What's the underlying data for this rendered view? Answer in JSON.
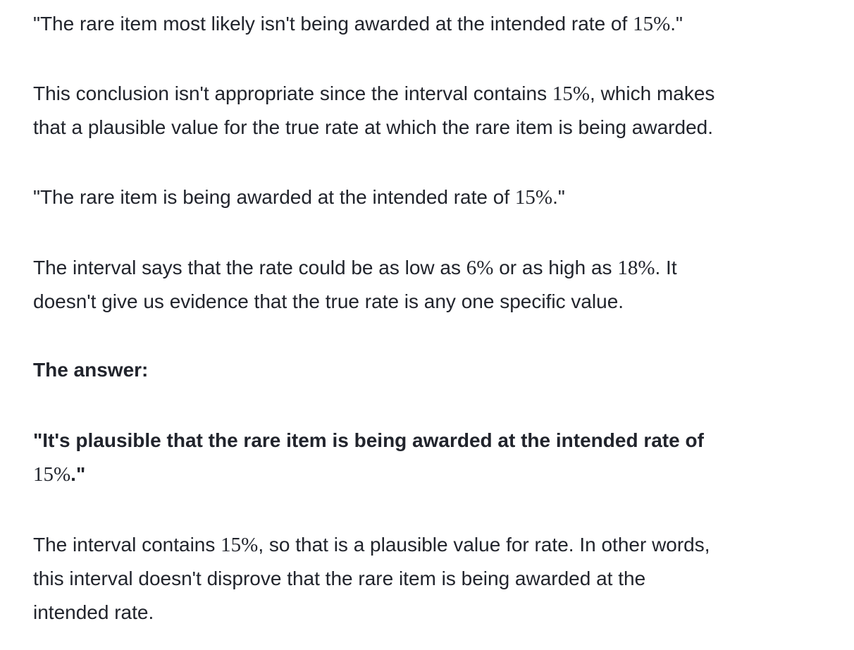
{
  "blocks": [
    {
      "id": "quote-1",
      "bold": false,
      "lines": [
        [
          {
            "t": "\"The rare item most likely isn't being awarded at the intended rate of "
          },
          {
            "t": "15%",
            "m": true
          },
          {
            "t": ".\""
          }
        ]
      ]
    },
    {
      "id": "explanation-1",
      "bold": false,
      "lines": [
        [
          {
            "t": "This conclusion isn't appropriate since the interval contains "
          },
          {
            "t": "15%",
            "m": true
          },
          {
            "t": ", which makes"
          }
        ],
        [
          {
            "t": "that a plausible value for the true rate at which the rare item is being awarded."
          }
        ]
      ]
    },
    {
      "id": "quote-2",
      "bold": false,
      "lines": [
        [
          {
            "t": "\"The rare item is being awarded at the intended rate of "
          },
          {
            "t": "15%",
            "m": true
          },
          {
            "t": ".\""
          }
        ]
      ]
    },
    {
      "id": "explanation-2",
      "bold": false,
      "lines": [
        [
          {
            "t": "The interval says that the rate could be as low as "
          },
          {
            "t": "6%",
            "m": true
          },
          {
            "t": " or as high as "
          },
          {
            "t": "18%",
            "m": true
          },
          {
            "t": ". It"
          }
        ],
        [
          {
            "t": "doesn't give us evidence that the true rate is any one specific value."
          }
        ]
      ]
    },
    {
      "id": "answer-heading",
      "bold": true,
      "lines": [
        [
          {
            "t": "The answer:"
          }
        ]
      ]
    },
    {
      "id": "answer-quote",
      "bold": true,
      "lines": [
        [
          {
            "t": "\"It's plausible that the rare item is being awarded at the intended rate of"
          }
        ],
        [
          {
            "t": "15%",
            "m": true
          },
          {
            "t": ".\""
          }
        ]
      ]
    },
    {
      "id": "answer-explanation",
      "bold": false,
      "lines": [
        [
          {
            "t": "The interval contains "
          },
          {
            "t": "15%",
            "m": true
          },
          {
            "t": ", so that is a plausible value for rate. In other words,"
          }
        ],
        [
          {
            "t": "this interval doesn't disprove that the rare item is being awarded at the"
          }
        ],
        [
          {
            "t": "intended rate."
          }
        ]
      ]
    }
  ]
}
